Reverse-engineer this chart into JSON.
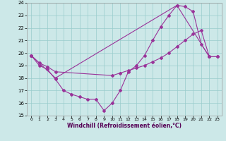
{
  "xlabel": "Windchill (Refroidissement éolien,°C)",
  "xlim": [
    -0.5,
    23.5
  ],
  "ylim": [
    15,
    24
  ],
  "xticks": [
    0,
    1,
    2,
    3,
    4,
    5,
    6,
    7,
    8,
    9,
    10,
    11,
    12,
    13,
    14,
    15,
    16,
    17,
    18,
    19,
    20,
    21,
    22,
    23
  ],
  "yticks": [
    15,
    16,
    17,
    18,
    19,
    20,
    21,
    22,
    23,
    24
  ],
  "bg_color": "#cce8e8",
  "line_color": "#993399",
  "grid_color": "#99cccc",
  "line1_x": [
    0,
    1,
    2,
    3,
    4,
    5,
    6,
    7,
    8,
    9,
    10,
    11,
    12,
    13,
    14,
    15,
    16,
    17,
    18,
    19,
    20,
    21,
    22,
    23
  ],
  "line1_y": [
    19.8,
    19.0,
    18.7,
    17.9,
    17.0,
    16.7,
    16.5,
    16.3,
    16.3,
    15.4,
    16.0,
    17.0,
    18.5,
    19.0,
    19.8,
    21.0,
    22.1,
    23.0,
    23.8,
    23.7,
    23.3,
    20.7,
    19.7,
    19.7
  ],
  "line2_x": [
    0,
    1,
    2,
    3,
    10,
    11,
    12,
    13,
    14,
    15,
    16,
    17,
    18,
    19,
    20,
    21,
    22,
    23
  ],
  "line2_y": [
    19.8,
    19.2,
    18.9,
    18.5,
    18.2,
    18.4,
    18.6,
    18.8,
    19.0,
    19.3,
    19.6,
    20.0,
    20.5,
    21.0,
    21.5,
    21.8,
    19.7,
    19.7
  ],
  "line3_x": [
    0,
    3,
    18,
    22
  ],
  "line3_y": [
    19.8,
    18.0,
    23.8,
    19.7
  ]
}
